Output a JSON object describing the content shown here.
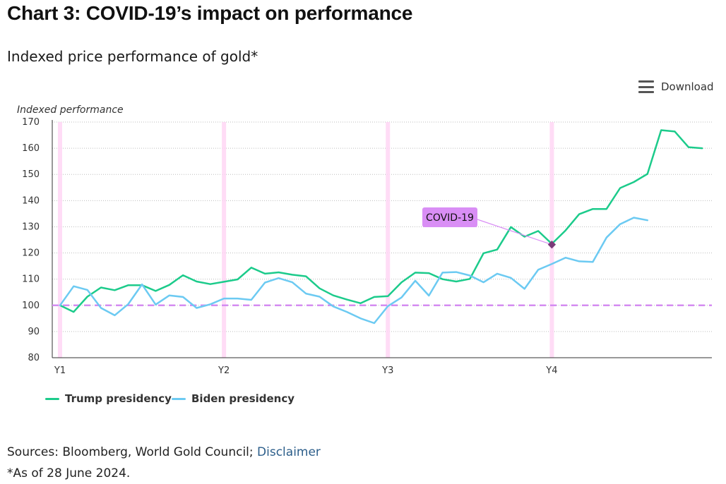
{
  "header": {
    "title": "Chart 3: COVID-19’s impact on performance",
    "subtitle": "Indexed price performance of gold*"
  },
  "toolbar": {
    "download_label": "Download",
    "download_icon": "menu-icon"
  },
  "chart_data": {
    "type": "line",
    "ylabel": "Indexed performance",
    "xlabel": "",
    "ylim": [
      80,
      170
    ],
    "yticks": [
      80,
      90,
      100,
      110,
      120,
      130,
      140,
      150,
      160,
      170
    ],
    "xlim": [
      0,
      47.3
    ],
    "xticks": [
      {
        "label": "Y1",
        "x": 0
      },
      {
        "label": "Y2",
        "x": 12
      },
      {
        "label": "Y3",
        "x": 24
      },
      {
        "label": "Y4",
        "x": 36
      }
    ],
    "grid": true,
    "baseline": 100,
    "year_markers": [
      0,
      12,
      24,
      36
    ],
    "series": [
      {
        "name": "Trump presidency",
        "color": "#1ccb8b",
        "values": [
          100,
          97.5,
          103.3,
          106.8,
          105.8,
          107.7,
          107.7,
          105.5,
          107.8,
          111.5,
          109.1,
          108.1,
          109.0,
          109.9,
          114.4,
          112.1,
          112.6,
          111.7,
          111.1,
          106.5,
          103.8,
          102.2,
          100.8,
          103.2,
          103.5,
          108.8,
          112.5,
          112.3,
          110.0,
          109.1,
          110.1,
          119.9,
          121.3,
          129.9,
          126.2,
          128.4,
          123.5,
          128.6,
          134.8,
          136.8,
          136.8,
          144.8,
          147.1,
          150.2,
          166.9,
          166.4,
          160.4,
          160.0
        ]
      },
      {
        "name": "Biden presidency",
        "color": "#6ccaf2",
        "values": [
          100,
          107.3,
          105.9,
          99.0,
          96.2,
          100.5,
          108.0,
          100.3,
          103.8,
          103.2,
          99.0,
          100.4,
          102.6,
          102.6,
          102.1,
          108.7,
          110.4,
          108.8,
          104.5,
          103.3,
          99.6,
          97.5,
          95.0,
          93.2,
          99.7,
          103.0,
          109.4,
          103.7,
          112.5,
          112.7,
          111.4,
          108.8,
          112.1,
          110.5,
          106.3,
          113.6,
          115.8,
          118.2,
          116.8,
          116.6,
          125.9,
          131.0,
          133.5,
          132.5
        ]
      }
    ],
    "annotations": [
      {
        "label": "COVID-19",
        "x": 36,
        "y": 123.2,
        "color": "#d98ef5"
      }
    ]
  },
  "footer": {
    "sources_prefix": "Sources: Bloomberg, World Gold Council; ",
    "disclaimer_link": "Disclaimer",
    "note": "*As of 28 June 2024."
  }
}
